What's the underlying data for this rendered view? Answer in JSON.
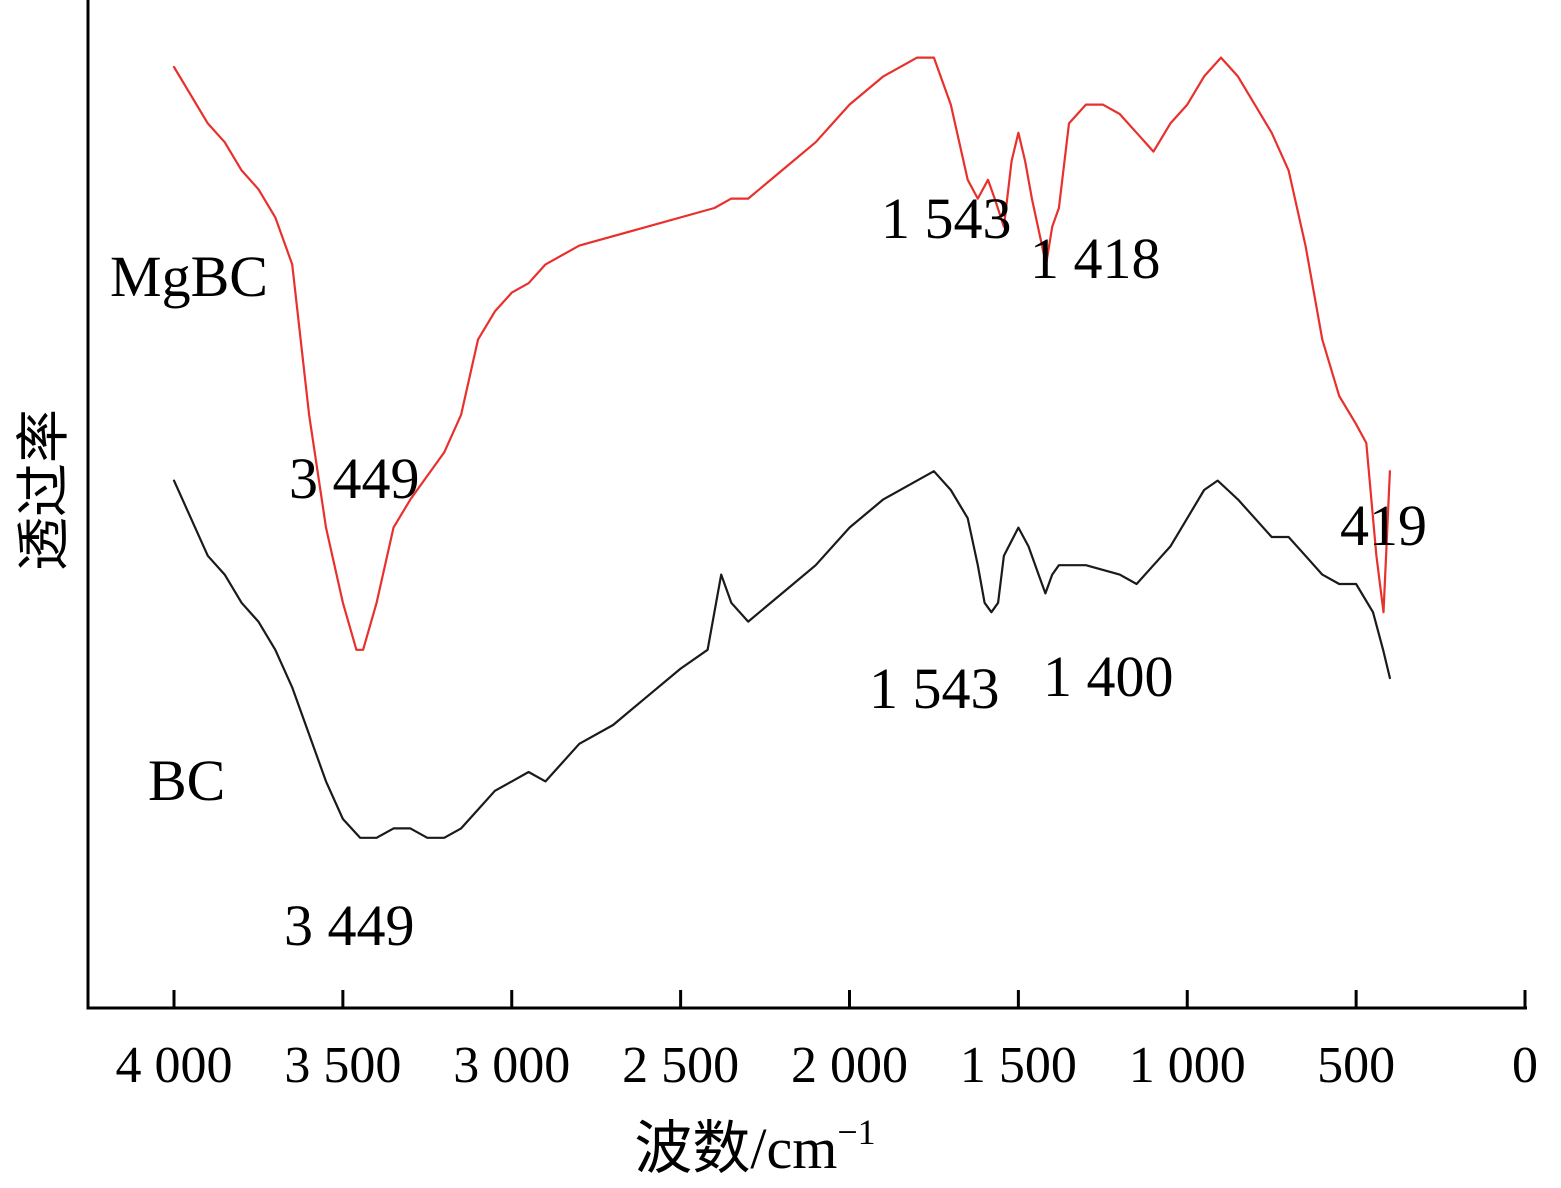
{
  "chart_data": {
    "type": "line",
    "ylabel": "透过率",
    "xlabel": "波数/cm",
    "xlabel_superscript": "−1",
    "xlim": [
      4000,
      0
    ],
    "x_ticks": [
      {
        "value": 4000,
        "label": "4 000"
      },
      {
        "value": 3500,
        "label": "3 500"
      },
      {
        "value": 3000,
        "label": "3 000"
      },
      {
        "value": 2500,
        "label": "2 500"
      },
      {
        "value": 2000,
        "label": "2 000"
      },
      {
        "value": 1500,
        "label": "1 500"
      },
      {
        "value": 1000,
        "label": "1 000"
      },
      {
        "value": 500,
        "label": "500"
      },
      {
        "value": 0,
        "label": "0"
      }
    ],
    "ylim": [
      0,
      100
    ],
    "grid": false,
    "series": [
      {
        "name": "MgBC",
        "color": "#e8302c",
        "points": [
          [
            4000,
            95
          ],
          [
            3900,
            89
          ],
          [
            3850,
            87
          ],
          [
            3800,
            84
          ],
          [
            3750,
            82
          ],
          [
            3700,
            79
          ],
          [
            3650,
            74
          ],
          [
            3600,
            58
          ],
          [
            3550,
            46
          ],
          [
            3500,
            38
          ],
          [
            3460,
            33
          ],
          [
            3440,
            33
          ],
          [
            3400,
            38
          ],
          [
            3350,
            46
          ],
          [
            3300,
            49
          ],
          [
            3200,
            54
          ],
          [
            3150,
            58
          ],
          [
            3100,
            66
          ],
          [
            3050,
            69
          ],
          [
            3000,
            71
          ],
          [
            2950,
            72
          ],
          [
            2900,
            74
          ],
          [
            2800,
            76
          ],
          [
            2600,
            78
          ],
          [
            2400,
            80
          ],
          [
            2350,
            81
          ],
          [
            2300,
            81
          ],
          [
            2200,
            84
          ],
          [
            2100,
            87
          ],
          [
            2000,
            91
          ],
          [
            1900,
            94
          ],
          [
            1800,
            96
          ],
          [
            1750,
            96
          ],
          [
            1700,
            91
          ],
          [
            1650,
            83
          ],
          [
            1620,
            81
          ],
          [
            1590,
            83
          ],
          [
            1570,
            81
          ],
          [
            1543,
            78
          ],
          [
            1520,
            85
          ],
          [
            1500,
            88
          ],
          [
            1480,
            85
          ],
          [
            1460,
            81
          ],
          [
            1430,
            76
          ],
          [
            1418,
            74
          ],
          [
            1400,
            78
          ],
          [
            1380,
            80
          ],
          [
            1350,
            89
          ],
          [
            1300,
            91
          ],
          [
            1250,
            91
          ],
          [
            1200,
            90
          ],
          [
            1150,
            88
          ],
          [
            1100,
            86
          ],
          [
            1050,
            89
          ],
          [
            1000,
            91
          ],
          [
            950,
            94
          ],
          [
            900,
            96
          ],
          [
            850,
            94
          ],
          [
            800,
            91
          ],
          [
            750,
            88
          ],
          [
            700,
            84
          ],
          [
            650,
            76
          ],
          [
            600,
            66
          ],
          [
            550,
            60
          ],
          [
            500,
            57
          ],
          [
            470,
            55
          ],
          [
            440,
            43
          ],
          [
            419,
            37
          ],
          [
            410,
            44
          ],
          [
            400,
            52
          ]
        ]
      },
      {
        "name": "BC",
        "color": "#1a1a1a",
        "points": [
          [
            4000,
            51
          ],
          [
            3950,
            47
          ],
          [
            3900,
            43
          ],
          [
            3850,
            41
          ],
          [
            3800,
            38
          ],
          [
            3750,
            36
          ],
          [
            3700,
            33
          ],
          [
            3650,
            29
          ],
          [
            3600,
            24
          ],
          [
            3550,
            19
          ],
          [
            3500,
            15
          ],
          [
            3449,
            13
          ],
          [
            3400,
            13
          ],
          [
            3350,
            14
          ],
          [
            3300,
            14
          ],
          [
            3250,
            13
          ],
          [
            3200,
            13
          ],
          [
            3150,
            14
          ],
          [
            3100,
            16
          ],
          [
            3050,
            18
          ],
          [
            3000,
            19
          ],
          [
            2950,
            20
          ],
          [
            2900,
            19
          ],
          [
            2850,
            21
          ],
          [
            2800,
            23
          ],
          [
            2700,
            25
          ],
          [
            2600,
            28
          ],
          [
            2500,
            31
          ],
          [
            2420,
            33
          ],
          [
            2380,
            41
          ],
          [
            2350,
            38
          ],
          [
            2300,
            36
          ],
          [
            2200,
            39
          ],
          [
            2100,
            42
          ],
          [
            2000,
            46
          ],
          [
            1900,
            49
          ],
          [
            1800,
            51
          ],
          [
            1750,
            52
          ],
          [
            1700,
            50
          ],
          [
            1650,
            47
          ],
          [
            1620,
            42
          ],
          [
            1600,
            38
          ],
          [
            1580,
            37
          ],
          [
            1560,
            38
          ],
          [
            1543,
            43
          ],
          [
            1500,
            46
          ],
          [
            1470,
            44
          ],
          [
            1440,
            41
          ],
          [
            1420,
            39
          ],
          [
            1400,
            41
          ],
          [
            1380,
            42
          ],
          [
            1350,
            42
          ],
          [
            1300,
            42
          ],
          [
            1200,
            41
          ],
          [
            1150,
            40
          ],
          [
            1100,
            42
          ],
          [
            1050,
            44
          ],
          [
            1000,
            47
          ],
          [
            950,
            50
          ],
          [
            910,
            51
          ],
          [
            880,
            50
          ],
          [
            850,
            49
          ],
          [
            800,
            47
          ],
          [
            750,
            45
          ],
          [
            700,
            45
          ],
          [
            650,
            43
          ],
          [
            600,
            41
          ],
          [
            550,
            40
          ],
          [
            500,
            40
          ],
          [
            450,
            37
          ],
          [
            420,
            33
          ],
          [
            400,
            30
          ]
        ]
      }
    ],
    "annotations": [
      {
        "text": "3 449",
        "series": "MgBC"
      },
      {
        "text": "1 543",
        "series": "MgBC"
      },
      {
        "text": "1 418",
        "series": "MgBC"
      },
      {
        "text": "419",
        "series": "MgBC"
      },
      {
        "text": "3 449",
        "series": "BC"
      },
      {
        "text": "1 543",
        "series": "BC"
      },
      {
        "text": "1 400",
        "series": "BC"
      }
    ]
  }
}
